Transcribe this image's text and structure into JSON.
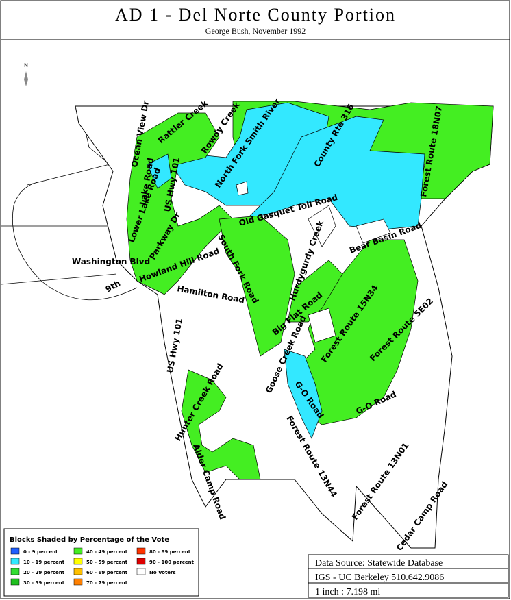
{
  "header": {
    "title": "AD 1 - Del Norte County Portion",
    "subtitle": "George Bush, November 1992"
  },
  "north": "N",
  "roads": [
    "Ocean View Dr",
    "Rattler Creek",
    "Rowdy Creek",
    "North Fork Smith River",
    "County Rte 316",
    "Forest Route 18N07",
    "Lake Road",
    "US Hwy 101",
    "Lower Lake Road",
    "Old Gasquet Toll Road",
    "Parkway Dr",
    "Washington Blvd",
    "Howland Hill Road",
    "9th",
    "South Fork Road",
    "Hurdygurdy Creek",
    "Bear Basin Road",
    "Hamilton Road",
    "Big Flat Road",
    "Forest Route 15N34",
    "Forest Route 5E02",
    "US Hwy 101",
    "Goose Creek Road",
    "G-O Road",
    "G-O Road",
    "Hunter Creek Road",
    "Alder Camp Road",
    "Forest Route 13N44",
    "Forest Route 13N01",
    "Cedar Camp Road"
  ],
  "legend": {
    "title": "Blocks Shaded by Percentage of the Vote",
    "items": [
      {
        "label": "0 - 9 percent",
        "color": "#1f5fff"
      },
      {
        "label": "10 - 19 percent",
        "color": "#33e8ff"
      },
      {
        "label": "20 - 29 percent",
        "color": "#33dd33"
      },
      {
        "label": "30 - 39 percent",
        "color": "#1fbf1f"
      },
      {
        "label": "40 - 49 percent",
        "color": "#44ee22"
      },
      {
        "label": "50 - 59 percent",
        "color": "#ffff00"
      },
      {
        "label": "60 - 69 percent",
        "color": "#ffc000"
      },
      {
        "label": "70 - 79 percent",
        "color": "#ff8000"
      },
      {
        "label": "80 - 89 percent",
        "color": "#ff3300"
      },
      {
        "label": "90 - 100 percent",
        "color": "#dd0000"
      },
      {
        "label": "No Voters",
        "color": "#ffffff"
      }
    ]
  },
  "source": {
    "line1": "Data Source: Statewide Database",
    "line2": "IGS - UC Berkeley 510.642.9086",
    "line3": "1 inch : 7.198 mi"
  }
}
